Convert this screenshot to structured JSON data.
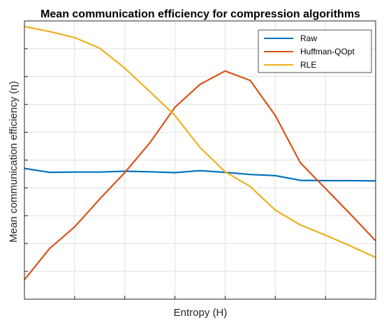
{
  "chart_data": {
    "type": "line",
    "title": "Mean communication efficiency for compression algorithms",
    "xlabel": "Entropy (H)",
    "ylabel": "Mean communication efficiency (η)",
    "x": [
      0,
      0.5,
      1,
      1.5,
      2,
      2.5,
      3,
      3.5,
      4,
      4.5,
      5,
      5.5,
      6,
      6.5,
      7
    ],
    "xlim": [
      0,
      7
    ],
    "ylim": [
      0,
      10
    ],
    "grid": true,
    "legend_position": "top-right",
    "series": [
      {
        "name": "Raw",
        "color": "#0072BD",
        "values": [
          4.7,
          4.56,
          4.57,
          4.57,
          4.6,
          4.58,
          4.55,
          4.62,
          4.56,
          4.48,
          4.44,
          4.27,
          4.26,
          4.26,
          4.25
        ]
      },
      {
        "name": "Huffman-QOpt",
        "color": "#D95319",
        "values": [
          0.7,
          1.82,
          2.6,
          3.6,
          4.55,
          5.62,
          6.9,
          7.72,
          8.2,
          7.86,
          6.6,
          4.9,
          3.98,
          3.05,
          2.1
        ]
      },
      {
        "name": "RLE",
        "color": "#EDB120",
        "values": [
          9.8,
          9.62,
          9.4,
          9.02,
          8.3,
          7.46,
          6.6,
          5.45,
          4.58,
          4.05,
          3.2,
          2.67,
          2.3,
          1.91,
          1.5
        ]
      }
    ]
  }
}
